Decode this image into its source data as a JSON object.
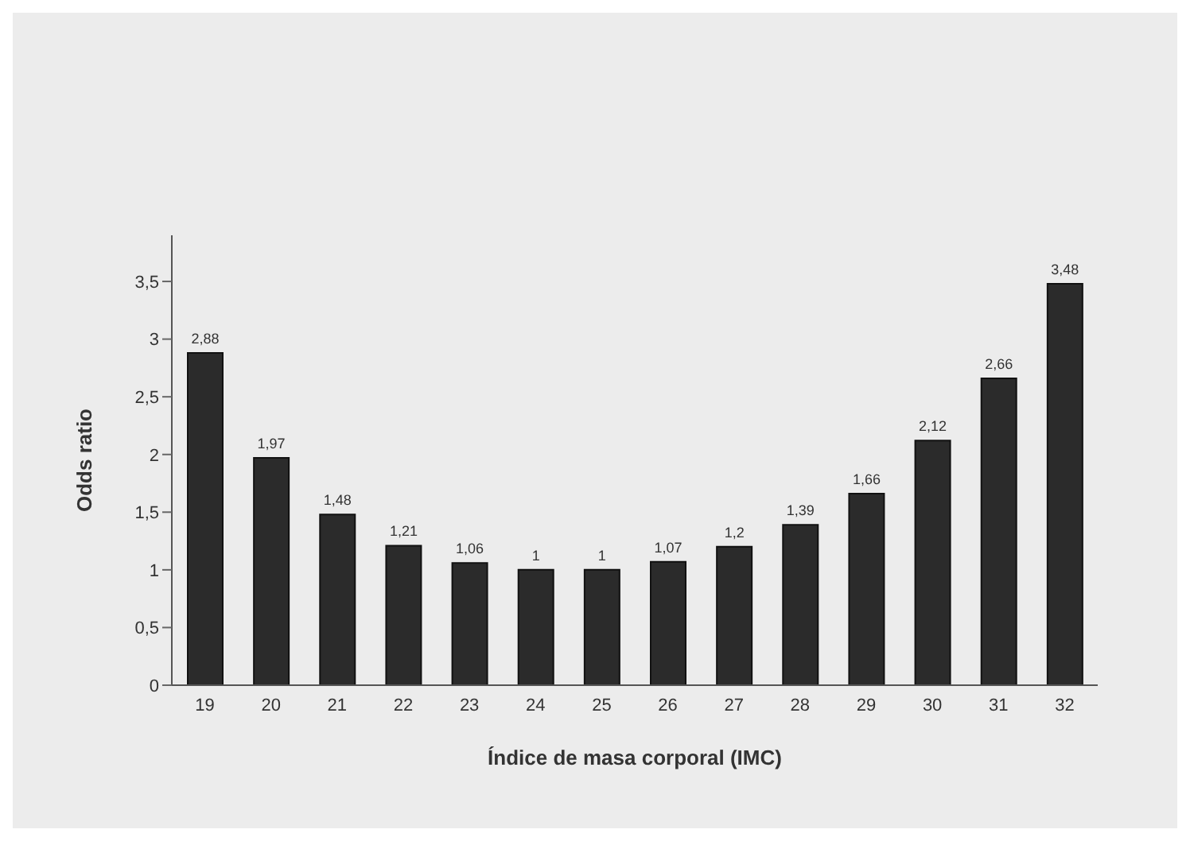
{
  "chart_data": {
    "type": "bar",
    "xlabel": "Índice de masa corporal (IMC)",
    "ylabel": "Odds ratio",
    "categories": [
      "19",
      "20",
      "21",
      "22",
      "23",
      "24",
      "25",
      "26",
      "27",
      "28",
      "29",
      "30",
      "31",
      "32"
    ],
    "values": [
      2.88,
      1.97,
      1.48,
      1.21,
      1.06,
      1,
      1,
      1.07,
      1.2,
      1.39,
      1.66,
      2.12,
      2.66,
      3.48
    ],
    "value_labels": [
      "2,88",
      "1,97",
      "1,48",
      "1,21",
      "1,06",
      "1",
      "1",
      "1,07",
      "1,2",
      "1,39",
      "1,66",
      "2,12",
      "2,66",
      "3,48"
    ],
    "color": "#2b2b2b",
    "ylim": [
      0,
      3.9
    ],
    "yticks": [
      0,
      {
        "value": 0.5,
        "label": "0,5"
      },
      1,
      {
        "value": 1.5,
        "label": "1,5"
      },
      2,
      {
        "value": 2.5,
        "label": "2,5"
      },
      3,
      {
        "value": 3.5,
        "label": "3,5"
      }
    ],
    "grid": false,
    "legend": false
  }
}
